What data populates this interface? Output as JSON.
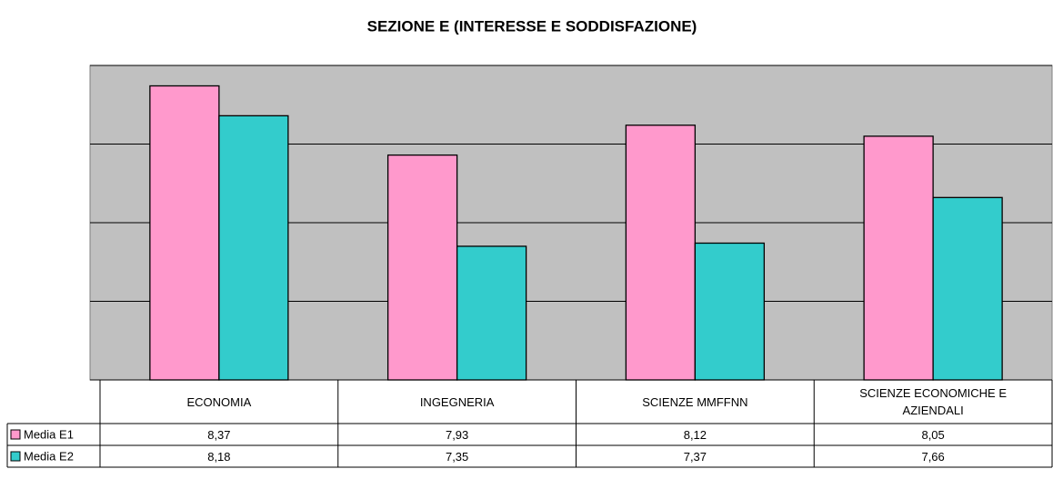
{
  "chart_data": {
    "type": "bar",
    "title": "SEZIONE E (INTERESSE E SODDISFAZIONE)",
    "categories": [
      "ECONOMIA",
      "INGEGNERIA",
      "SCIENZE MMFFNN",
      "SCIENZE ECONOMICHE E AZIENDALI"
    ],
    "series": [
      {
        "name": "Media E1",
        "color": "#ff99cc",
        "values": [
          8.37,
          7.93,
          8.12,
          8.05
        ],
        "value_labels": [
          "8,37",
          "7,93",
          "8,12",
          "8,05"
        ]
      },
      {
        "name": "Media E2",
        "color": "#33cccc",
        "values": [
          8.18,
          7.35,
          7.37,
          7.66
        ],
        "value_labels": [
          "8,18",
          "7,35",
          "7,37",
          "7,66"
        ]
      }
    ],
    "ylim": [
      6.5,
      8.5
    ],
    "yticks": [
      6.5,
      7,
      7.5,
      8,
      8.5
    ],
    "grid": true,
    "plot_background": "#c0c0c0"
  }
}
